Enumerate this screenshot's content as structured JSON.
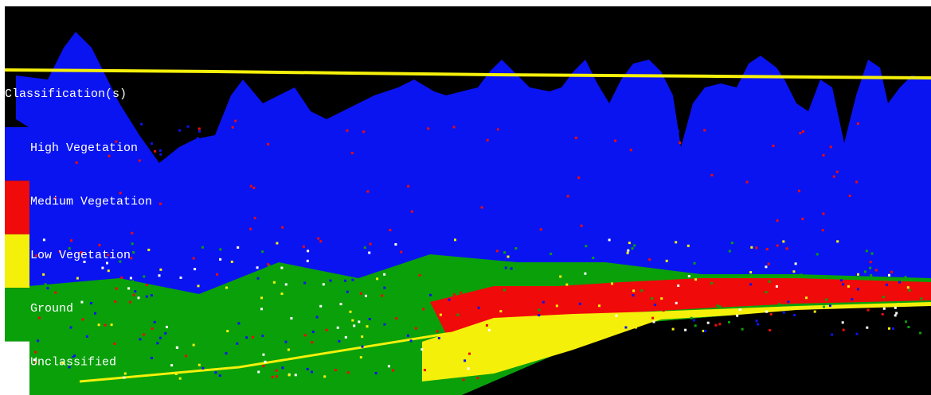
{
  "legend": {
    "title": "Classification(s)",
    "items": [
      {
        "label": "High Vegetation",
        "color": "#0a14f0"
      },
      {
        "label": "Medium Vegetation",
        "color": "#f00a0a"
      },
      {
        "label": "Low Vegetation",
        "color": "#f5f00a"
      },
      {
        "label": "Ground",
        "color": "#0aa00a"
      },
      {
        "label": "Unclassified",
        "color": "#ffffff"
      }
    ]
  }
}
